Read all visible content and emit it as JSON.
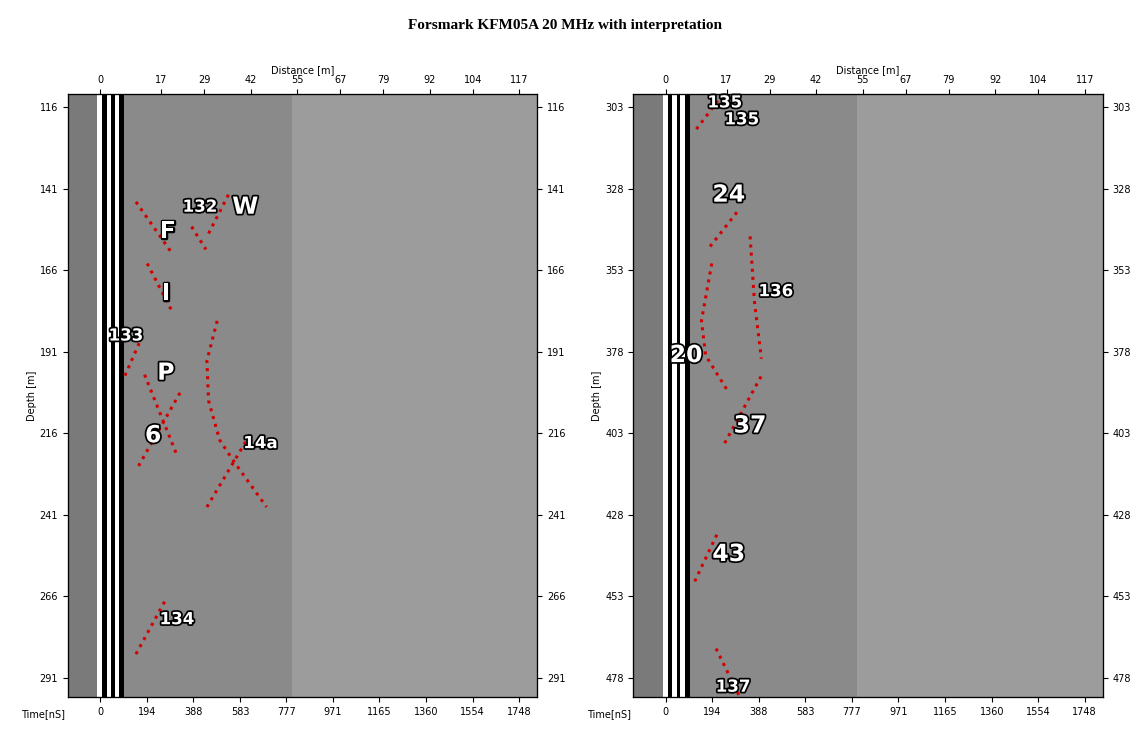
{
  "chart_data": {
    "type": "radargram",
    "title": "Forsmark KFM05A 20 MHz with interpretation",
    "x_label": "Time[nS]",
    "x2_label": "Distance [m]",
    "y_label": "Depth [m]",
    "xlim": [
      -135,
      1823
    ],
    "xticks": [
      0,
      194,
      388,
      583,
      777,
      971,
      1165,
      1360,
      1554,
      1748
    ],
    "x2lim": [
      -9.0,
      122.0
    ],
    "x2ticks": [
      0,
      17,
      29,
      42,
      55,
      67,
      79,
      92,
      104,
      117
    ],
    "line_style": "dotted",
    "color": "#d40000",
    "bands": [
      {
        "from": -135,
        "to": -12,
        "color": "#7a7a7a"
      },
      {
        "from": -12,
        "to": 8,
        "color": "#ffffff"
      },
      {
        "from": 8,
        "to": 28,
        "color": "#000000"
      },
      {
        "from": 28,
        "to": 45,
        "color": "#ffffff"
      },
      {
        "from": 45,
        "to": 60,
        "color": "#000000"
      },
      {
        "from": 60,
        "to": 80,
        "color": "#ffffff"
      },
      {
        "from": 80,
        "to": 100,
        "color": "#000000"
      },
      {
        "from": 100,
        "to": 800,
        "color": "#8a8a8a"
      },
      {
        "from": 800,
        "to": 1823,
        "color": "#9c9c9c"
      }
    ],
    "panels": [
      {
        "ylim": [
          297,
          112
        ],
        "yticks": [
          116,
          141,
          166,
          191,
          216,
          241,
          266,
          291
        ],
        "interpretations": [
          {
            "label": "F",
            "line": [
              [
                149,
                145
              ],
              [
                292,
                160
              ]
            ],
            "label_at": [
              [
                281,
                154
              ]
            ]
          },
          {
            "label": "132",
            "line": [
              [
                381,
                152.6
              ],
              [
                441,
                159.6
              ]
            ],
            "label_at": [
              [
                416,
                146.5
              ]
            ]
          },
          {
            "label": "W",
            "line": [
              [
                452,
                154.7
              ],
              [
                541,
                141.9
              ]
            ],
            "label_at": [
              [
                605,
                146.5
              ]
            ]
          },
          {
            "label": "I",
            "line": [
              [
                196,
                163.9
              ],
              [
                299,
                178.5
              ]
            ],
            "label_at": [
              [
                274,
                173
              ]
            ]
          },
          {
            "label": "133",
            "line": [
              [
                103,
                198.3
              ],
              [
                167,
                187.6
              ]
            ],
            "label_at": [
              [
                107,
                186
              ]
            ]
          },
          {
            "label": "P",
            "line": [
              [
                160,
                226
              ],
              [
                338,
                202.9
              ]
            ],
            "label_at": [
              [
                274,
                197.4
              ]
            ]
          },
          {
            "label": "6",
            "line": [
              [
                185,
                198
              ],
              [
                320,
                222.7
              ]
            ],
            "label_at": [
              [
                221,
                216.6
              ]
            ]
          },
          {
            "label": "14a",
            "line": [
              [
                488,
                181.5
              ],
              [
                445,
                193.7
              ],
              [
                452,
                206
              ],
              [
                498,
                218
              ],
              [
                559,
                224.8
              ],
              [
                694,
                238.6
              ]
            ],
            "label_at": [
              [
                668,
                219
              ]
            ]
          },
          {
            "label": null,
            "line": [
              [
                445,
                238.6
              ],
              [
                630,
                215.7
              ]
            ],
            "label_at": []
          },
          {
            "label": "134",
            "line": [
              [
                149,
                283.7
              ],
              [
                274,
                266.9
              ]
            ],
            "label_at": [
              [
                320,
                273
              ]
            ]
          }
        ]
      },
      {
        "ylim": [
          484,
          299
        ],
        "yticks": [
          303,
          328,
          353,
          378,
          403,
          428,
          453,
          478
        ],
        "interpretations": [
          {
            "label": "135",
            "line": [
              [
                128,
                309.7
              ],
              [
                238,
                299
              ]
            ],
            "label_at": [
              [
                246,
                301.5
              ],
              [
                317,
                306.7
              ]
            ]
          },
          {
            "label": "24",
            "line": [
              [
                185,
                345.7
              ],
              [
                299,
                335
              ]
            ],
            "label_at": [
              [
                263,
                329.8
              ]
            ]
          },
          {
            "label": "20",
            "line": [
              [
                192,
                350.9
              ],
              [
                149,
                368.5
              ],
              [
                167,
                379.2
              ],
              [
                263,
                390.5
              ]
            ],
            "label_at": [
              [
                85,
                379
              ]
            ]
          },
          {
            "label": "136",
            "line": [
              [
                352,
                342.6
              ],
              [
                370,
                362.5
              ],
              [
                399,
                380.1
              ]
            ],
            "label_at": [
              [
                459,
                359.4
              ]
            ]
          },
          {
            "label": "37",
            "line": [
              [
                246,
                406
              ],
              [
                406,
                384.4
              ]
            ],
            "label_at": [
              [
                352,
                400.6
              ]
            ]
          },
          {
            "label": "43",
            "line": [
              [
                121,
                448.4
              ],
              [
                217,
                433.5
              ]
            ],
            "label_at": [
              [
                263,
                440
              ]
            ]
          },
          {
            "label": "137",
            "line": [
              [
                210,
                469
              ],
              [
                310,
                484
              ]
            ],
            "label_at": [
              [
                281,
                480.7
              ]
            ]
          }
        ]
      }
    ]
  }
}
